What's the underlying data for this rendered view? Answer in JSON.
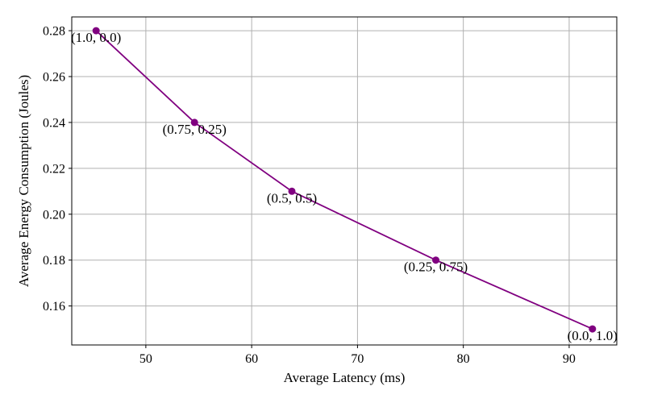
{
  "chart_data": {
    "type": "line",
    "title": "",
    "xlabel": "Average Latency (ms)",
    "ylabel": "Average Energy Consumption (Joules)",
    "xlim": [
      43,
      94.5
    ],
    "ylim": [
      0.143,
      0.286
    ],
    "xticks": [
      50,
      60,
      70,
      80,
      90
    ],
    "yticks": [
      0.16,
      0.18,
      0.2,
      0.22,
      0.24,
      0.26,
      0.28
    ],
    "xtick_labels": [
      "50",
      "60",
      "70",
      "80",
      "90"
    ],
    "ytick_labels": [
      "0.16",
      "0.18",
      "0.20",
      "0.22",
      "0.24",
      "0.26",
      "0.28"
    ],
    "grid": true,
    "series": [
      {
        "color": "#800080",
        "x": [
          45.3,
          54.6,
          63.8,
          77.4,
          92.2
        ],
        "y": [
          0.28,
          0.24,
          0.21,
          0.18,
          0.15
        ],
        "labels": [
          "(1.0, 0.0)",
          "(0.75, 0.25)",
          "(0.5, 0.5)",
          "(0.25, 0.75)",
          "(0.0, 1.0)"
        ]
      }
    ]
  }
}
